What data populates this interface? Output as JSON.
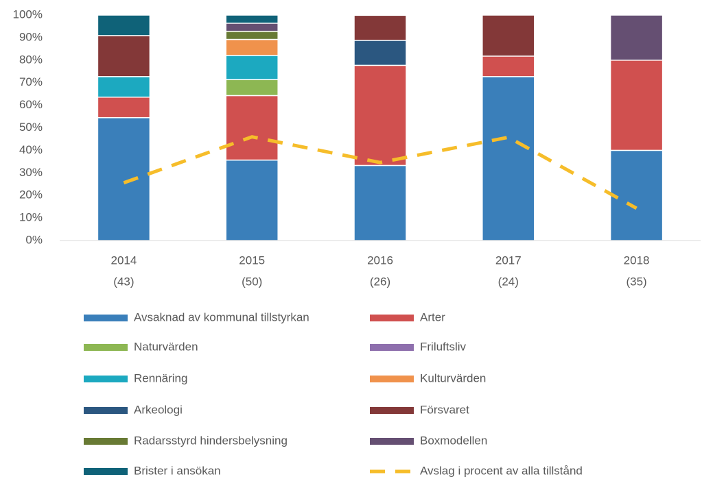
{
  "chart_data": {
    "type": "bar",
    "stacked": true,
    "categories": [
      [
        "2014",
        "(43)"
      ],
      [
        "2015",
        "(50)"
      ],
      [
        "2016",
        "(26)"
      ],
      [
        "2017",
        "(24)"
      ],
      [
        "2018",
        "(35)"
      ]
    ],
    "ylim": [
      0,
      100
    ],
    "yticks": [
      {
        "value": 0,
        "label": "0%"
      },
      {
        "value": 10,
        "label": "10%"
      },
      {
        "value": 20,
        "label": "20%"
      },
      {
        "value": 30,
        "label": "30%"
      },
      {
        "value": 40,
        "label": "40%"
      },
      {
        "value": 50,
        "label": "50%"
      },
      {
        "value": 60,
        "label": "60%"
      },
      {
        "value": 70,
        "label": "70%"
      },
      {
        "value": 80,
        "label": "80%"
      },
      {
        "value": 90,
        "label": "90%"
      },
      {
        "value": 100,
        "label": "100%"
      }
    ],
    "grid": false,
    "legend": "bottom",
    "series": [
      {
        "name": "Avsaknad av kommunal tillstyrkan",
        "color": "#3a7fba",
        "values": [
          54.5,
          35.7,
          33.3,
          72.7,
          40
        ]
      },
      {
        "name": "Arter",
        "color": "#d0504f",
        "values": [
          9.1,
          28.6,
          44.4,
          9.1,
          40
        ]
      },
      {
        "name": "Naturvärden",
        "color": "#8db753",
        "values": [
          0,
          7.1,
          0,
          0,
          0
        ]
      },
      {
        "name": "Friluftsliv",
        "color": "#8e6fad",
        "values": [
          0,
          0,
          0,
          0,
          0
        ]
      },
      {
        "name": "Rennäring",
        "color": "#1ca9c0",
        "values": [
          9.1,
          10.7,
          0,
          0,
          0
        ]
      },
      {
        "name": "Kulturvärden",
        "color": "#f0924c",
        "values": [
          0,
          7.1,
          0,
          0,
          0
        ]
      },
      {
        "name": "Arkeologi",
        "color": "#2b5780",
        "values": [
          0,
          0,
          11.1,
          0,
          0
        ]
      },
      {
        "name": "Försvaret",
        "color": "#833838",
        "values": [
          18.2,
          0,
          11.1,
          18.2,
          0
        ]
      },
      {
        "name": "Radarsstyrd hindersbelysning",
        "color": "#687a34",
        "values": [
          0,
          3.6,
          0,
          0,
          0
        ]
      },
      {
        "name": "Boxmodellen",
        "color": "#654f72",
        "values": [
          0,
          3.6,
          0,
          0,
          20
        ]
      },
      {
        "name": "Brister i ansökan",
        "color": "#0f6278",
        "values": [
          9.1,
          3.6,
          0,
          0,
          0
        ]
      },
      {
        "name": "Avslag i procent av alla tillstånd",
        "color": "#f6bd2a",
        "type": "line",
        "values": [
          25.6,
          46,
          34.6,
          45.8,
          14.3
        ]
      }
    ]
  }
}
